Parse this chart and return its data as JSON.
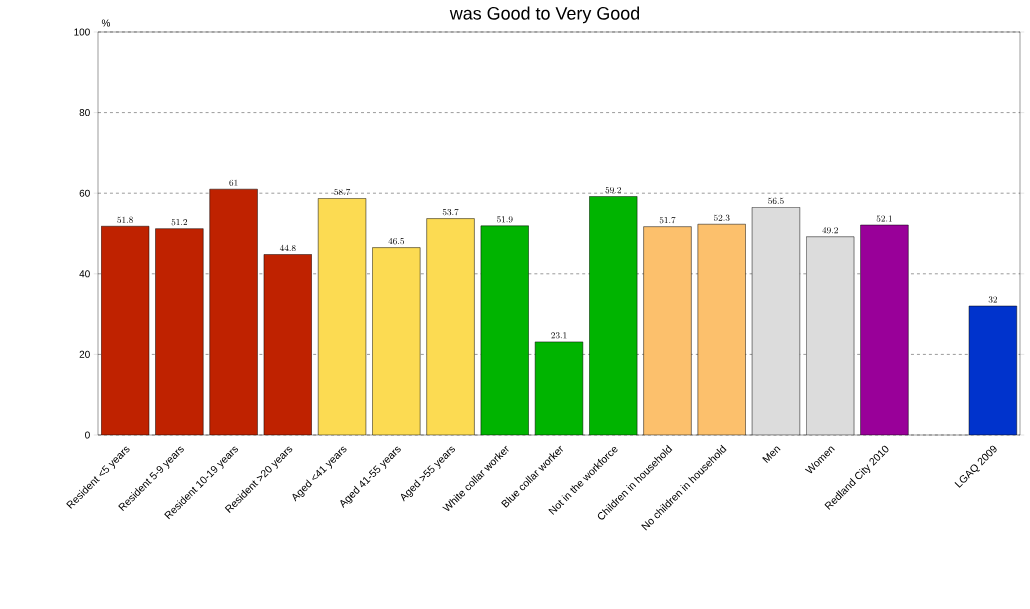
{
  "chart_data": {
    "type": "bar",
    "title": "was Good to Very Good",
    "ylabel": "%",
    "categories": [
      "Resident <5 years",
      "Resident 5-9 years",
      "Resident 10-19 years",
      "Resident >20 years",
      "Aged <41 years",
      "Aged 41-55 years",
      "Aged >55 years",
      "White collar worker",
      "Blue collar worker",
      "Not in the workforce",
      "Children in household",
      "No children in household",
      "Men",
      "Women",
      "Redland City 2010",
      null,
      "LGAQ 2009"
    ],
    "values": [
      51.8,
      51.2,
      61,
      44.8,
      58.7,
      46.5,
      53.7,
      51.9,
      23.1,
      59.2,
      51.7,
      52.3,
      56.5,
      49.2,
      52.1,
      null,
      32
    ],
    "colors": [
      "#bf2200",
      "#bf2200",
      "#bf2200",
      "#bf2200",
      "#fcdb52",
      "#fcdb52",
      "#fcdb52",
      "#00b400",
      "#00b400",
      "#00b400",
      "#fcc06c",
      "#fcc06c",
      "#dcdcdc",
      "#dcdcdc",
      "#990099",
      "#ffffff",
      "#0033cc"
    ],
    "ylim": [
      0,
      100
    ],
    "yticks": [
      0,
      20,
      40,
      60,
      80,
      100
    ],
    "grid": "y",
    "data_labels": true
  }
}
